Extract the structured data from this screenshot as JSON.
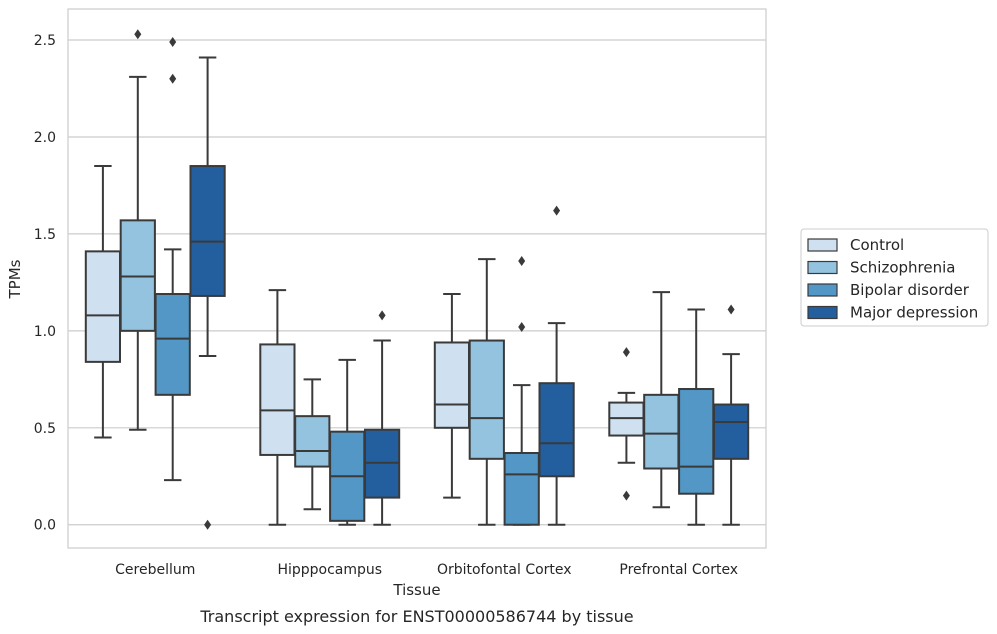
{
  "chart_data": {
    "type": "boxplot",
    "xlabel": "Tissue",
    "ylabel": "TPMs",
    "caption": "Transcript expression for ENST00000586744 by tissue",
    "ylim": [
      -0.12,
      2.66
    ],
    "yticks": [
      "0.0",
      "0.5",
      "1.0",
      "1.5",
      "2.0",
      "2.5"
    ],
    "grid": "horizontal",
    "legend_position": "right",
    "categories": [
      "Cerebellum",
      "Hipppocampus",
      "Orbitofontal Cortex",
      "Prefrontal Cortex"
    ],
    "series": [
      {
        "name": "Control",
        "color": "#cfe0f0",
        "boxes": [
          {
            "whislo": 0.45,
            "q1": 0.84,
            "med": 1.08,
            "q3": 1.41,
            "whishi": 1.85,
            "fliers": []
          },
          {
            "whislo": 0.0,
            "q1": 0.36,
            "med": 0.59,
            "q3": 0.93,
            "whishi": 1.21,
            "fliers": []
          },
          {
            "whislo": 0.14,
            "q1": 0.5,
            "med": 0.62,
            "q3": 0.94,
            "whishi": 1.19,
            "fliers": []
          },
          {
            "whislo": 0.32,
            "q1": 0.46,
            "med": 0.55,
            "q3": 0.63,
            "whishi": 0.68,
            "fliers": [
              0.89,
              0.15
            ]
          }
        ]
      },
      {
        "name": "Schizophrenia",
        "color": "#93c3df",
        "boxes": [
          {
            "whislo": 0.49,
            "q1": 1.0,
            "med": 1.28,
            "q3": 1.57,
            "whishi": 2.31,
            "fliers": [
              2.53
            ]
          },
          {
            "whislo": 0.08,
            "q1": 0.3,
            "med": 0.38,
            "q3": 0.56,
            "whishi": 0.75,
            "fliers": []
          },
          {
            "whislo": 0.0,
            "q1": 0.34,
            "med": 0.55,
            "q3": 0.95,
            "whishi": 1.37,
            "fliers": []
          },
          {
            "whislo": 0.09,
            "q1": 0.29,
            "med": 0.47,
            "q3": 0.67,
            "whishi": 1.2,
            "fliers": []
          }
        ]
      },
      {
        "name": "Bipolar disorder",
        "color": "#5297c6",
        "boxes": [
          {
            "whislo": 0.23,
            "q1": 0.67,
            "med": 0.96,
            "q3": 1.19,
            "whishi": 1.42,
            "fliers": [
              2.49,
              2.3
            ]
          },
          {
            "whislo": 0.0,
            "q1": 0.02,
            "med": 0.25,
            "q3": 0.48,
            "whishi": 0.85,
            "fliers": []
          },
          {
            "whislo": 0.0,
            "q1": 0.0,
            "med": 0.26,
            "q3": 0.37,
            "whishi": 0.72,
            "fliers": [
              1.36,
              1.02
            ]
          },
          {
            "whislo": 0.0,
            "q1": 0.16,
            "med": 0.3,
            "q3": 0.7,
            "whishi": 1.11,
            "fliers": []
          }
        ]
      },
      {
        "name": "Major depression",
        "color": "#235f9e",
        "boxes": [
          {
            "whislo": 0.87,
            "q1": 1.18,
            "med": 1.46,
            "q3": 1.85,
            "whishi": 2.41,
            "fliers": [
              0.0
            ]
          },
          {
            "whislo": 0.0,
            "q1": 0.14,
            "med": 0.32,
            "q3": 0.49,
            "whishi": 0.95,
            "fliers": [
              1.08
            ]
          },
          {
            "whislo": 0.0,
            "q1": 0.25,
            "med": 0.42,
            "q3": 0.73,
            "whishi": 1.04,
            "fliers": [
              1.62
            ]
          },
          {
            "whislo": 0.0,
            "q1": 0.34,
            "med": 0.53,
            "q3": 0.62,
            "whishi": 0.88,
            "fliers": [
              1.11
            ]
          }
        ]
      }
    ]
  }
}
